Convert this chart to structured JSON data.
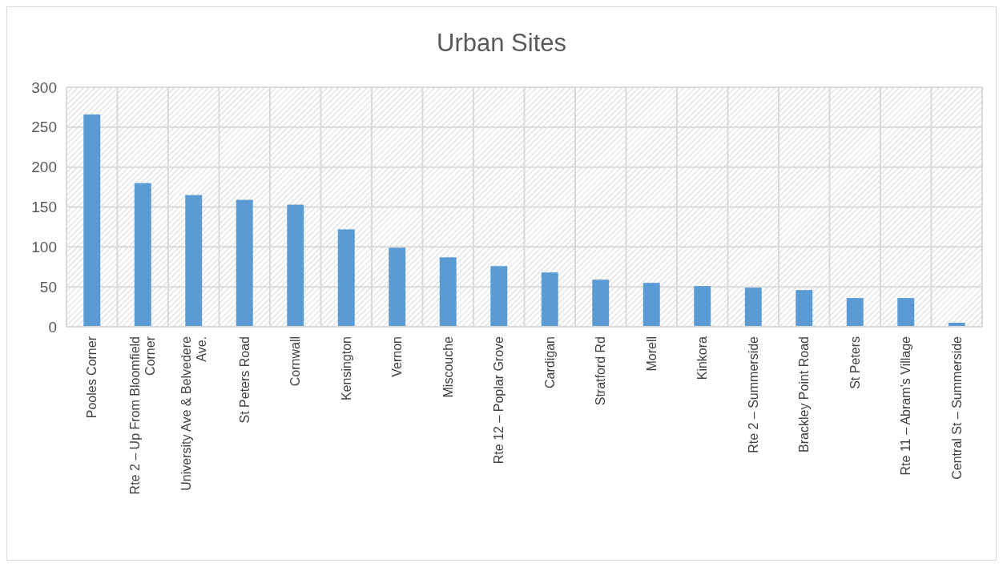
{
  "chart_data": {
    "type": "bar",
    "title": "Urban Sites",
    "categories": [
      "Pooles Corner",
      "Rte 2 – Up From Bloomfield Corner",
      "University Ave & Belvedere Ave.",
      "St Peters Road",
      "Cornwall",
      "Kensington",
      "Vernon",
      "Miscouche",
      "Rte 12 – Poplar Grove",
      "Cardigan",
      "Stratford Rd",
      "Morell",
      "Kinkora",
      "Rte 2 – Summerside",
      "Brackley Point Road",
      "St Peters",
      "Rte 11 – Abram’s Village",
      "Central St – Summerside"
    ],
    "values": [
      266,
      180,
      165,
      159,
      153,
      122,
      99,
      87,
      76,
      68,
      59,
      55,
      51,
      49,
      46,
      36,
      36,
      5
    ],
    "color": "#5b9bd5",
    "ylim": [
      0,
      300
    ],
    "yticks": [
      0,
      50,
      100,
      150,
      200,
      250,
      300
    ],
    "grid": true
  }
}
